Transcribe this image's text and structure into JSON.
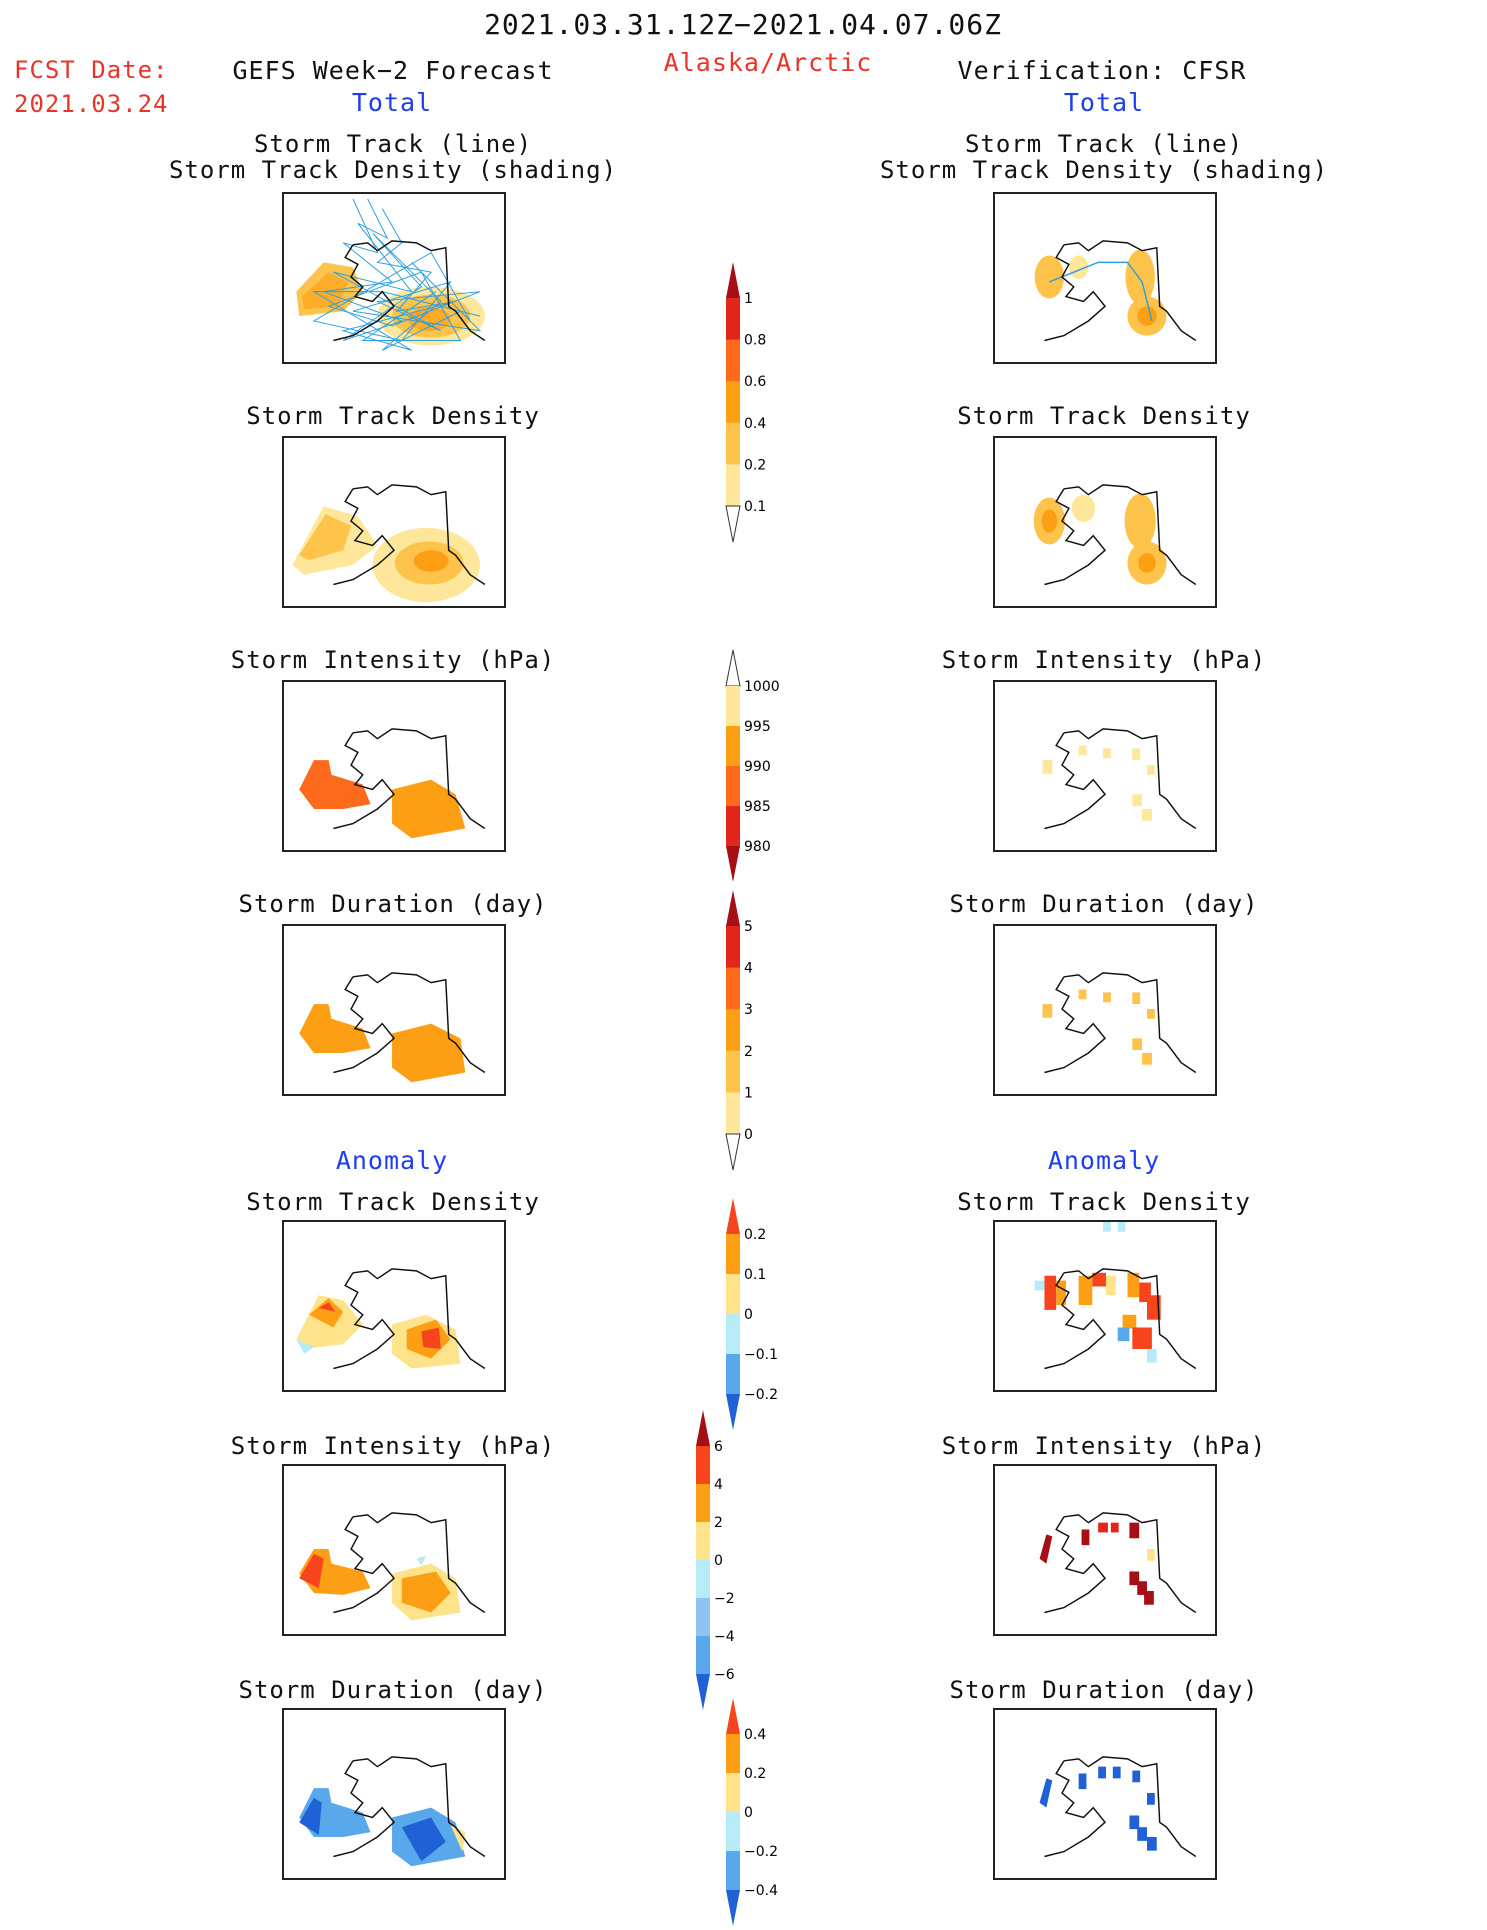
{
  "header": {
    "title": "2021.03.31.12Z−2021.04.07.06Z",
    "fcst_label": "FCST Date:",
    "fcst_date": "2021.03.24",
    "left_title": "GEFS Week−2 Forecast",
    "region": "Alaska/Arctic",
    "right_title": "Verification: CFSR",
    "total_label": "Total",
    "anomaly_label": "Anomaly"
  },
  "panel_titles": {
    "track_line": "Storm Track (line)",
    "track_shading": "Storm Track Density (shading)",
    "density": "Storm Track Density",
    "intensity": "Storm Intensity (hPa)",
    "duration": "Storm Duration (day)"
  },
  "colors": {
    "title_red": "#e8342a",
    "label_blue": "#1f3df0",
    "track_line": "#2d9fe0"
  },
  "colorbars": [
    {
      "name": "total-density-colorbar",
      "ticks": [
        "1",
        "0.8",
        "0.6",
        "0.4",
        "0.2",
        "0.1"
      ],
      "colors": [
        "#a50f15",
        "#e3261c",
        "#fd6a1b",
        "#fd9f15",
        "#fdc34a",
        "#fee79a",
        "#fffbc8"
      ]
    },
    {
      "name": "total-intensity-colorbar",
      "ticks": [
        "1000",
        "995",
        "990",
        "985",
        "980"
      ],
      "colors": [
        "#fffbc8",
        "#fee79a",
        "#fd9f15",
        "#fd6a1b",
        "#e3261c",
        "#a50f15"
      ]
    },
    {
      "name": "total-duration-colorbar",
      "ticks": [
        "5",
        "4",
        "3",
        "2",
        "1",
        "0"
      ],
      "colors": [
        "#a50f15",
        "#e3261c",
        "#fd6a1b",
        "#fd9f15",
        "#fdc34a",
        "#fee79a",
        "#fffbc8"
      ]
    },
    {
      "name": "anomaly-density-colorbar",
      "ticks": [
        "0.2",
        "0.1",
        "0",
        "−0.1",
        "−0.2"
      ],
      "colors": [
        "#f6451c",
        "#fd9f15",
        "#fee38a",
        "#b6ecf7",
        "#5aa8ec",
        "#2062d6"
      ]
    },
    {
      "name": "anomaly-intensity-colorbar",
      "ticks": [
        "6",
        "4",
        "2",
        "0",
        "−2",
        "−4",
        "−6"
      ],
      "colors": [
        "#a50f15",
        "#f6451c",
        "#fd9f15",
        "#fee38a",
        "#b6ecf7",
        "#8fc4f2",
        "#5aa8ec",
        "#2062d6"
      ]
    },
    {
      "name": "anomaly-duration-colorbar",
      "ticks": [
        "0.4",
        "0.2",
        "0",
        "−0.2",
        "−0.4"
      ],
      "colors": [
        "#f6451c",
        "#fd9f15",
        "#fee38a",
        "#b6ecf7",
        "#5aa8ec",
        "#2062d6"
      ]
    }
  ]
}
